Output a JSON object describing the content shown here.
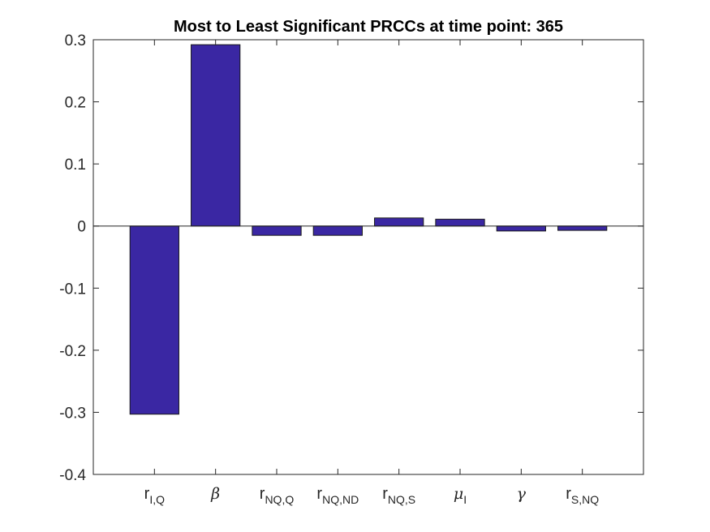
{
  "chart_data": {
    "type": "bar",
    "title": "Most to Least Significant PRCCs at time point: 365",
    "xlabel": "",
    "ylabel": "",
    "ylim": [
      -0.4,
      0.3
    ],
    "yticks": [
      -0.4,
      -0.3,
      -0.2,
      -0.1,
      0,
      0.1,
      0.2,
      0.3
    ],
    "ytick_labels": [
      "-0.4",
      "-0.3",
      "-0.2",
      "-0.1",
      "0",
      "0.1",
      "0.2",
      "0.3"
    ],
    "categories": [
      {
        "main": "r",
        "sub": "I,Q",
        "greek": false
      },
      {
        "main": "β",
        "sub": "",
        "greek": true
      },
      {
        "main": "r",
        "sub": "NQ,Q",
        "greek": false
      },
      {
        "main": "r",
        "sub": "NQ,ND",
        "greek": false
      },
      {
        "main": "r",
        "sub": "NQ,S",
        "greek": false
      },
      {
        "main": "μ",
        "sub": "I",
        "greek": true
      },
      {
        "main": "γ",
        "sub": "",
        "greek": true
      },
      {
        "main": "r",
        "sub": "S,NQ",
        "greek": false
      }
    ],
    "values": [
      -0.303,
      0.292,
      -0.015,
      -0.015,
      0.013,
      0.011,
      -0.008,
      -0.007
    ],
    "bar_color": "#3a27a3",
    "bar_edge_color": "#1a1a1a",
    "grid": false,
    "box": true
  }
}
